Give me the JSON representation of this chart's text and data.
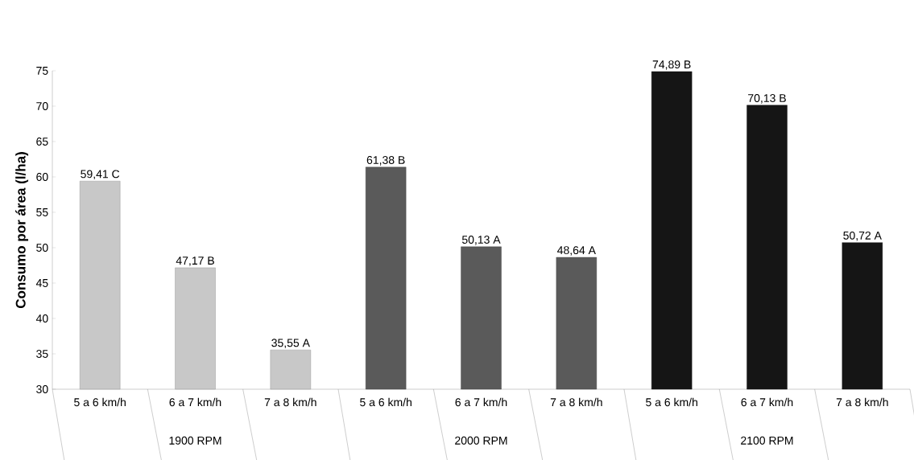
{
  "chart_data": {
    "type": "bar",
    "ylabel": "Consumo por área  (l/ha)",
    "categories": [
      "5 a 6 km/h",
      "6 a 7 km/h",
      "7 a 8 km/h",
      "5 a 6 km/h",
      "6 a 7 km/h",
      "7 a 8 km/h",
      "5 a 6 km/h",
      "6 a 7 km/h",
      "7 a 8 km/h"
    ],
    "values": [
      59.41,
      47.17,
      35.55,
      61.38,
      50.13,
      48.64,
      74.89,
      70.13,
      50.72
    ],
    "value_labels": [
      "59,41 C",
      "47,17 B",
      "35,55 A",
      "61,38 B",
      "50,13 A",
      "48,64 A",
      "74,89 B",
      "70,13 B",
      "50,72 A"
    ],
    "colors": [
      "#c8c8c8",
      "#c8c8c8",
      "#c8c8c8",
      "#5a5a5a",
      "#5a5a5a",
      "#5a5a5a",
      "#151515",
      "#151515",
      "#151515"
    ],
    "annotations": [
      "1900 RPM",
      "2000 RPM",
      "2100 RPM"
    ],
    "ylim": [
      30,
      75
    ],
    "yticks": [
      30,
      35,
      40,
      45,
      50,
      55,
      60,
      65,
      70,
      75
    ],
    "grid": false
  }
}
